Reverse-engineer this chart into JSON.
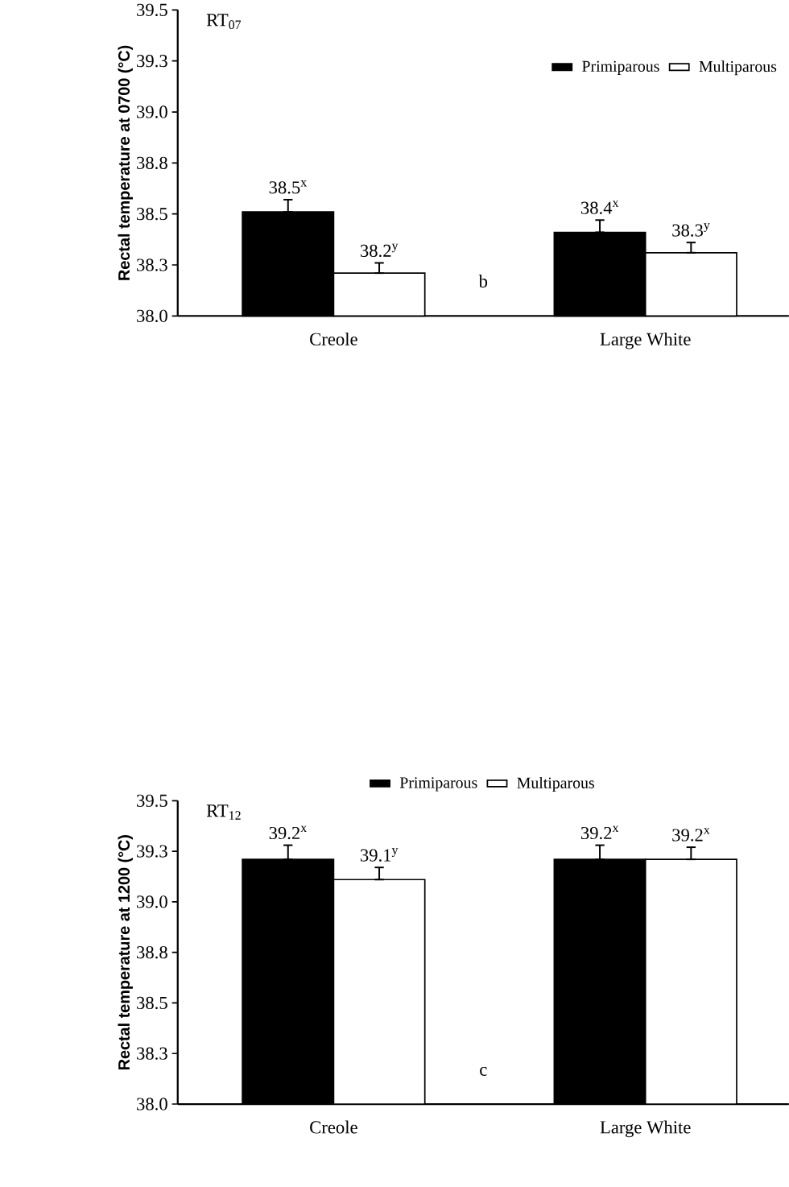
{
  "chart_data": [
    {
      "type": "bar",
      "title": "RT$_{07}$",
      "ylabel": "Rectal temperature at 0700 (°C)",
      "categories": [
        "Creole",
        "Large White"
      ],
      "series": [
        {
          "name": "Primiparous",
          "color": "#000000",
          "values": [
            38.51,
            38.41
          ],
          "errors": [
            [
              38.51,
              38.57
            ],
            [
              38.41,
              38.47
            ]
          ],
          "value_labels": [
            "38.5$^{x}$",
            "38.4$^{x}$"
          ]
        },
        {
          "name": "Multiparous",
          "color": "#ffffff",
          "values": [
            38.21,
            38.31
          ],
          "errors": [
            [
              38.21,
              38.26
            ],
            [
              38.31,
              38.36
            ]
          ],
          "value_labels": [
            "38.2$^{y}$",
            "38.3$^{y}$"
          ]
        }
      ],
      "ylim": [
        38.0,
        39.5
      ],
      "yticks": [
        {
          "value": 38.0,
          "label": "38.0"
        },
        {
          "value": 38.25,
          "label": "38.3"
        },
        {
          "value": 38.5,
          "label": "38.5"
        },
        {
          "value": 38.75,
          "label": "38.8"
        },
        {
          "value": 39.0,
          "label": "39.0"
        },
        {
          "value": 39.25,
          "label": "39.3"
        },
        {
          "value": 39.5,
          "label": "39.5"
        }
      ],
      "legend": "top right",
      "annotations": [
        "b"
      ]
    },
    {
      "type": "bar",
      "title": "RT$_{12}$",
      "ylabel": "Rectal temperature at 1200 (°C)",
      "categories": [
        "Creole",
        "Large White"
      ],
      "series": [
        {
          "name": "Primiparous",
          "color": "#000000",
          "values": [
            39.21,
            39.21
          ],
          "errors": [
            [
              39.21,
              39.28
            ],
            [
              39.21,
              39.28
            ]
          ],
          "value_labels": [
            "39.2$^{x}$",
            "39.2$^{x}$"
          ]
        },
        {
          "name": "Multiparous",
          "color": "#ffffff",
          "values": [
            39.11,
            39.21
          ],
          "errors": [
            [
              39.11,
              39.17
            ],
            [
              39.21,
              39.27
            ]
          ],
          "value_labels": [
            "39.1$^{y}$",
            "39.2$^{x}$"
          ]
        }
      ],
      "ylim": [
        38.0,
        39.5
      ],
      "yticks": [
        {
          "value": 38.0,
          "label": "38.0"
        },
        {
          "value": 38.25,
          "label": "38.3"
        },
        {
          "value": 38.5,
          "label": "38.5"
        },
        {
          "value": 38.75,
          "label": "38.8"
        },
        {
          "value": 39.0,
          "label": "39.0"
        },
        {
          "value": 39.25,
          "label": "39.3"
        },
        {
          "value": 39.5,
          "label": "39.5"
        }
      ],
      "legend": "top",
      "annotations": [
        "c"
      ]
    }
  ]
}
